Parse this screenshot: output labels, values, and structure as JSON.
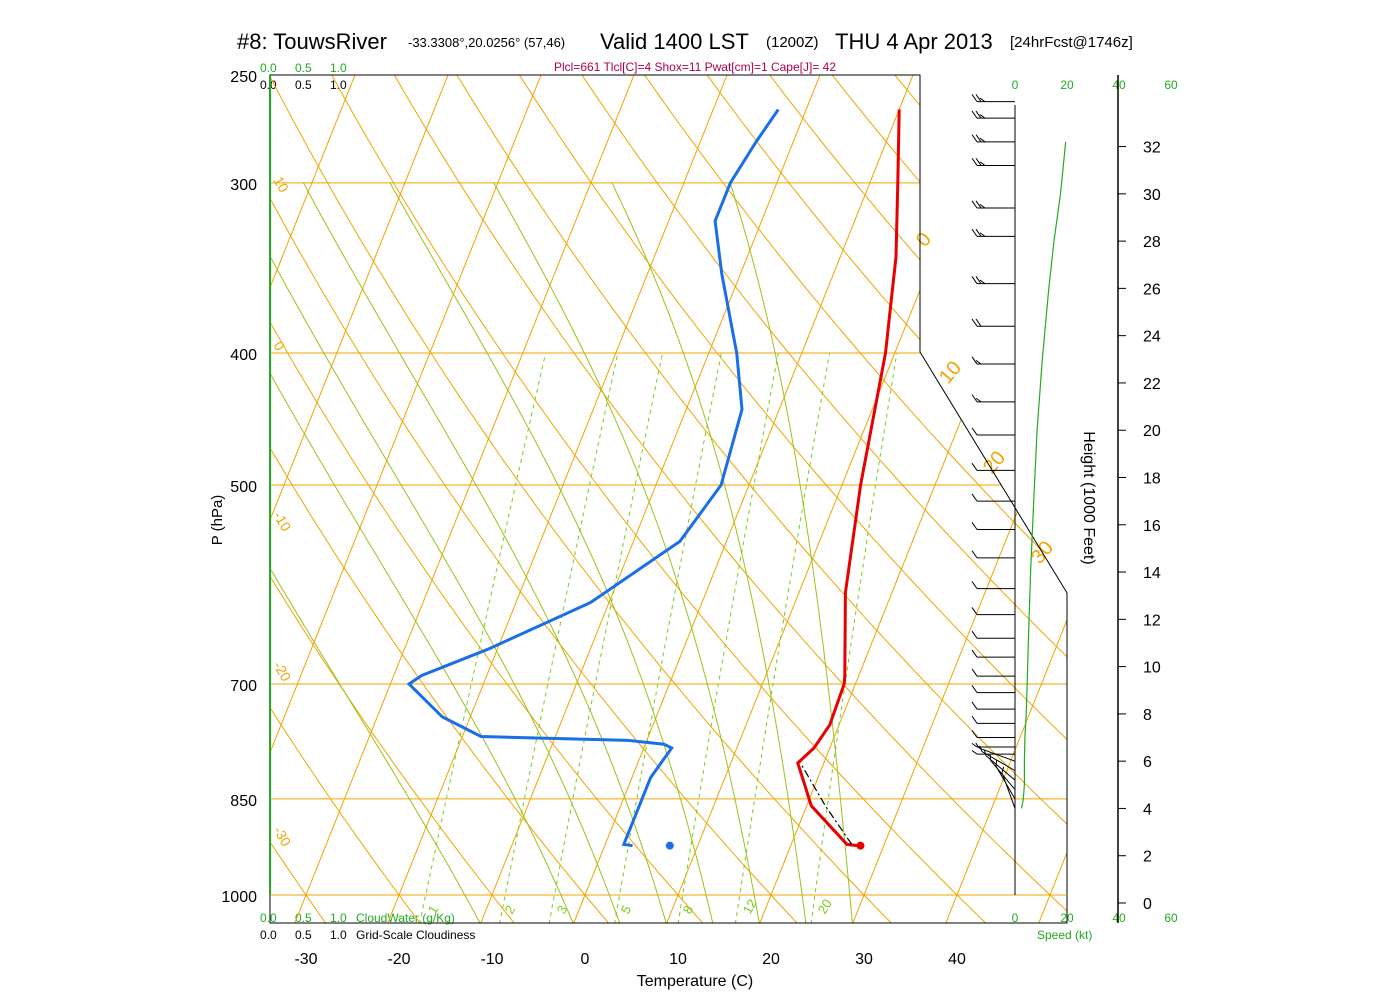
{
  "header": {
    "station": "#8: TouwsRiver",
    "coords": "-33.3308°,20.0256° (57,46)",
    "valid": "Valid 1400 LST",
    "zulu": "(1200Z)",
    "date": "THU 4 Apr 2013",
    "forecast": "[24hrFcst@1746z]",
    "indices": "Plcl=661 Tlcl[C]=4 Shox=11 Pwat[cm]=1 Cape[J]= 42"
  },
  "legend": {
    "cloudwater_ticks": [
      "0.0",
      "0.5",
      "1.0"
    ],
    "cloudiness_ticks": [
      "0.0",
      "0.5",
      "1.0"
    ],
    "cloudwater_label": "CloudWater (g/Kg)",
    "cloudiness_label": "Grid-Scale Cloudiness"
  },
  "wind_axis": {
    "label": "Speed (kt)",
    "ticks": [
      "0",
      "20",
      "40",
      "60"
    ]
  },
  "colors": {
    "isotherm": "#f0a500",
    "dry_adiabat": "#f0a500",
    "moist_adiabat": "#9ac21a",
    "mixing_ratio": "#7acc1a",
    "temperature": "#e60000",
    "dewpoint": "#1a6ee6",
    "indices": "#b0004a",
    "green_text": "#22aa22"
  },
  "chart_data": {
    "type": "line",
    "xlabel": "Temperature (C)",
    "ylabel": "P (hPa)",
    "y2label": "Height (1000 Feet)",
    "pressure_ticks": [
      250,
      300,
      400,
      500,
      700,
      850,
      1000
    ],
    "temperature_ticks": [
      -30,
      -20,
      -10,
      0,
      10,
      20,
      30,
      40
    ],
    "height_ticks_kft": [
      0,
      2,
      4,
      6,
      8,
      10,
      12,
      14,
      16,
      18,
      20,
      22,
      24,
      26,
      28,
      30,
      32
    ],
    "isotherm_labels": [
      "10",
      "0",
      "-10",
      "-20",
      "-30"
    ],
    "dry_adiabat_labels": [
      "0",
      "10",
      "20",
      "30"
    ],
    "mixing_ratio_labels": [
      "1",
      "2",
      "3",
      "5",
      "8",
      "12",
      "20"
    ],
    "series": [
      {
        "name": "Temperature",
        "points": [
          [
            27.3,
            920
          ],
          [
            26.0,
            918
          ],
          [
            20.5,
            860
          ],
          [
            17.2,
            800
          ],
          [
            18.3,
            780
          ],
          [
            19.0,
            750
          ],
          [
            18.8,
            700
          ],
          [
            18.5,
            690
          ],
          [
            15.0,
            600
          ],
          [
            12.0,
            500
          ],
          [
            9.0,
            400
          ],
          [
            6.0,
            340
          ],
          [
            3.0,
            300
          ],
          [
            0.0,
            265
          ]
        ]
      },
      {
        "name": "Dewpoint",
        "points": [
          [
            3.0,
            920
          ],
          [
            2.0,
            918
          ],
          [
            2.0,
            860
          ],
          [
            2.0,
            820
          ],
          [
            3.0,
            780
          ],
          [
            2.0,
            775
          ],
          [
            -2.0,
            770
          ],
          [
            -18.0,
            765
          ],
          [
            -23.0,
            740
          ],
          [
            -28.0,
            700
          ],
          [
            -27.0,
            690
          ],
          [
            -21.0,
            660
          ],
          [
            -12.0,
            610
          ],
          [
            -5.0,
            550
          ],
          [
            -3.0,
            500
          ],
          [
            -4.0,
            440
          ],
          [
            -7.0,
            400
          ],
          [
            -12.0,
            350
          ],
          [
            -15.0,
            320
          ],
          [
            -15.0,
            300
          ],
          [
            -14.0,
            280
          ],
          [
            -13.0,
            265
          ]
        ]
      },
      {
        "name": "Parcel",
        "points": [
          [
            26.5,
            918
          ],
          [
            22.0,
            860
          ],
          [
            17.5,
            800
          ]
        ]
      }
    ],
    "surface_markers": [
      {
        "name": "Surface T",
        "T": 27.5,
        "P": 920
      },
      {
        "name": "Surface Td",
        "T": 7.0,
        "P": 920
      }
    ],
    "wind_profile_speed_kt": [
      [
        2.5,
        4
      ],
      [
        3.2,
        4.4
      ],
      [
        3.6,
        5
      ],
      [
        3.6,
        6
      ],
      [
        3.8,
        7
      ],
      [
        4.3,
        8
      ],
      [
        4.6,
        9
      ],
      [
        5.1,
        11
      ],
      [
        6.0,
        14
      ],
      [
        7.2,
        17
      ],
      [
        8.5,
        20
      ],
      [
        10.5,
        23
      ],
      [
        13.0,
        26
      ],
      [
        15.0,
        28
      ],
      [
        17.5,
        30
      ],
      [
        19.5,
        32.2
      ]
    ],
    "wind_barbs": [
      {
        "h": 33.9,
        "dir": 270,
        "spd": 25
      },
      {
        "h": 33.2,
        "dir": 270,
        "spd": 25
      },
      {
        "h": 32.2,
        "dir": 270,
        "spd": 25
      },
      {
        "h": 31.2,
        "dir": 270,
        "spd": 25
      },
      {
        "h": 29.4,
        "dir": 270,
        "spd": 25
      },
      {
        "h": 28.2,
        "dir": 270,
        "spd": 25
      },
      {
        "h": 26.2,
        "dir": 270,
        "spd": 25
      },
      {
        "h": 24.4,
        "dir": 270,
        "spd": 20
      },
      {
        "h": 22.8,
        "dir": 270,
        "spd": 15
      },
      {
        "h": 21.2,
        "dir": 270,
        "spd": 15
      },
      {
        "h": 19.8,
        "dir": 270,
        "spd": 10
      },
      {
        "h": 18.3,
        "dir": 270,
        "spd": 10
      },
      {
        "h": 17.0,
        "dir": 270,
        "spd": 10
      },
      {
        "h": 15.8,
        "dir": 270,
        "spd": 10
      },
      {
        "h": 14.6,
        "dir": 270,
        "spd": 10
      },
      {
        "h": 13.3,
        "dir": 270,
        "spd": 10
      },
      {
        "h": 12.2,
        "dir": 270,
        "spd": 10
      },
      {
        "h": 11.2,
        "dir": 270,
        "spd": 10
      },
      {
        "h": 10.4,
        "dir": 270,
        "spd": 10
      },
      {
        "h": 9.6,
        "dir": 270,
        "spd": 10
      },
      {
        "h": 8.9,
        "dir": 270,
        "spd": 10
      },
      {
        "h": 8.2,
        "dir": 270,
        "spd": 10
      },
      {
        "h": 7.6,
        "dir": 270,
        "spd": 10
      },
      {
        "h": 7.0,
        "dir": 270,
        "spd": 10
      },
      {
        "h": 6.6,
        "dir": 270,
        "spd": 5
      },
      {
        "h": 6.3,
        "dir": 270,
        "spd": 5
      },
      {
        "h": 6.0,
        "dir": 290,
        "spd": 5
      },
      {
        "h": 5.6,
        "dir": 300,
        "spd": 5
      },
      {
        "h": 5.2,
        "dir": 310,
        "spd": 5
      },
      {
        "h": 4.8,
        "dir": 320,
        "spd": 5
      },
      {
        "h": 4.4,
        "dir": 330,
        "spd": 5
      },
      {
        "h": 4.0,
        "dir": 340,
        "spd": 5
      }
    ],
    "pressure_range": [
      1000,
      250
    ],
    "temperature_range": [
      -33,
      50
    ],
    "grid": true
  }
}
